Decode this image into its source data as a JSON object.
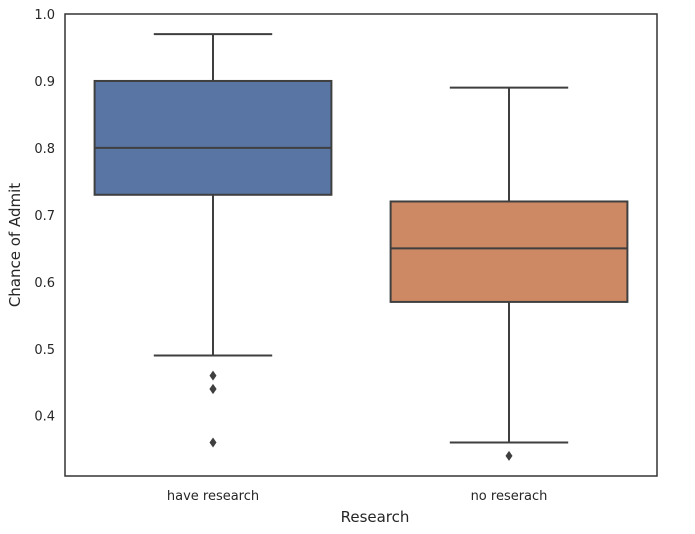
{
  "chart_data": {
    "type": "box",
    "xlabel": "Research",
    "ylabel": "Chance of Admit",
    "ylim": [
      0.31,
      1.0
    ],
    "yticks": [
      0.4,
      0.5,
      0.6,
      0.7,
      0.8,
      0.9,
      1.0
    ],
    "ytick_labels": [
      "0.4",
      "0.5",
      "0.6",
      "0.7",
      "0.8",
      "0.9",
      "1.0"
    ],
    "grid": false,
    "categories": [
      "have research",
      "no reserach"
    ],
    "boxes": [
      {
        "category": "have research",
        "color": "#5875a4",
        "whisker_low": 0.49,
        "q1": 0.73,
        "median": 0.8,
        "q3": 0.9,
        "whisker_high": 0.97,
        "outliers": [
          0.46,
          0.44,
          0.44,
          0.36
        ]
      },
      {
        "category": "no reserach",
        "color": "#cc8963",
        "whisker_low": 0.36,
        "q1": 0.57,
        "median": 0.65,
        "q3": 0.72,
        "whisker_high": 0.89,
        "outliers": [
          0.34
        ]
      }
    ]
  }
}
